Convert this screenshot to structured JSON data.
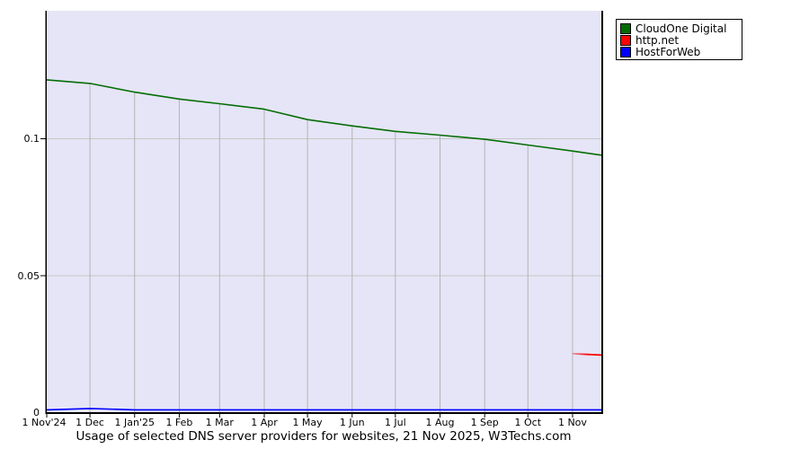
{
  "caption": "Usage of selected DNS server providers for websites, 21 Nov 2025, W3Techs.com",
  "colors": {
    "page_bg": "#ffffff",
    "plot_bg": "#e5e5f7",
    "grid_horizontal": "#c6c6c6",
    "grid_vertical": "#b4b4b4",
    "axis": "#000000",
    "legend_border": "#000000",
    "legend_bg": "#ffffff"
  },
  "legend": {
    "position": "top-right-outside",
    "items": [
      {
        "label": "CloudOne Digital",
        "color": "#006b00"
      },
      {
        "label": "http.net",
        "color": "#ff0000"
      },
      {
        "label": "HostForWeb",
        "color": "#0000ff"
      }
    ]
  },
  "chart_data": {
    "type": "line",
    "title": "Usage of selected DNS server providers for websites, 21 Nov 2025, W3Techs.com",
    "xlabel": "",
    "ylabel": "",
    "grid": true,
    "legend_position": "top-right",
    "ylim": [
      0,
      0.1467
    ],
    "y_ticks": [
      {
        "label": "0",
        "value": 0
      },
      {
        "label": "0.05",
        "value": 0.05
      },
      {
        "label": "0.1",
        "value": 0.1
      }
    ],
    "x_labels": [
      "1 Nov'24",
      "1 Dec",
      "1 Jan'25",
      "1 Feb",
      "1 Mar",
      "1 Apr",
      "1 May",
      "1 Jun",
      "1 Jul",
      "1 Aug",
      "1 Sep",
      "1 Oct",
      "1 Nov"
    ],
    "x_day_offsets": [
      0,
      30,
      61,
      92,
      120,
      151,
      181,
      212,
      242,
      273,
      304,
      334,
      365
    ],
    "end_day_offset": 385,
    "end_date_label": "21 Nov 2025",
    "total_days": 385,
    "series": [
      {
        "name": "CloudOne Digital",
        "color": "#066e06",
        "values": [
          0.1215,
          0.1202,
          0.117,
          0.1145,
          0.1128,
          0.1108,
          0.107,
          0.1047,
          0.1027,
          0.1013,
          0.0998,
          0.0977,
          0.0955
        ],
        "end_value": 0.094
      },
      {
        "name": "http.net",
        "color": "#ff0000",
        "fade_in": true,
        "values": [
          null,
          null,
          null,
          null,
          null,
          null,
          null,
          null,
          null,
          null,
          null,
          null,
          0.0215
        ],
        "end_value": 0.021
      },
      {
        "name": "HostForWeb",
        "color": "#0000ff",
        "values": [
          0.001,
          0.0015,
          0.001,
          0.001,
          0.001,
          0.001,
          0.001,
          0.001,
          0.001,
          0.001,
          0.001,
          0.001,
          0.001
        ],
        "end_value": 0.001
      }
    ]
  }
}
